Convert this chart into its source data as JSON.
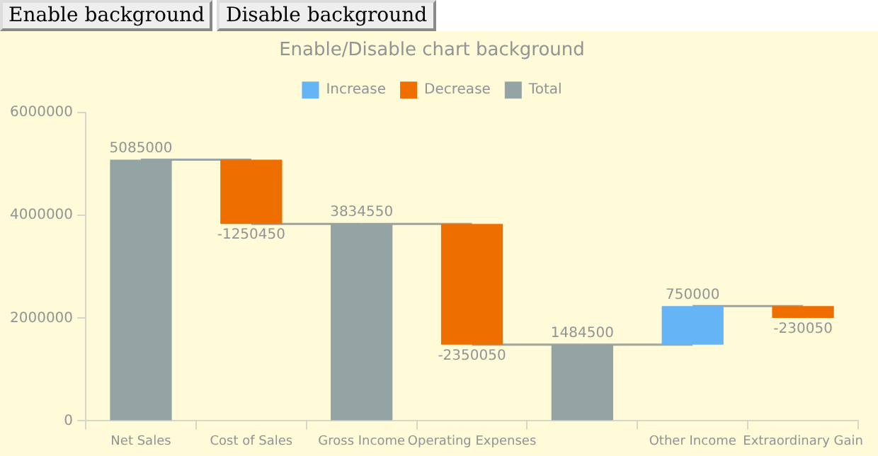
{
  "chart_data": {
    "type": "bar",
    "title": "Enable/Disable chart background",
    "categories": [
      "Net Sales",
      "Cost of Sales",
      "Gross Income",
      "Operating Expenses",
      null,
      "Other Income",
      "Extraordinary Gain"
    ],
    "annotations": [
      "Enable background",
      "Disable background"
    ],
    "series": [
      {
        "name": "Increase",
        "color": "#65b4f6",
        "base": [
          null,
          null,
          null,
          null,
          null,
          1484500,
          null
        ],
        "values": [
          null,
          null,
          null,
          null,
          null,
          750000,
          null
        ]
      },
      {
        "name": "Decrease",
        "color": "#ee6e00",
        "base": [
          null,
          5085000,
          null,
          3834550,
          null,
          null,
          2234500
        ],
        "values": [
          null,
          -1250450,
          null,
          -2350050,
          null,
          null,
          -230050
        ]
      },
      {
        "name": "Total",
        "color": "#94a3a3",
        "base": [
          0,
          null,
          0,
          null,
          0,
          null,
          null
        ],
        "values": [
          5085000,
          null,
          3834550,
          null,
          1484500,
          null,
          null
        ]
      }
    ],
    "ylim": [
      0,
      6000000
    ],
    "yticks": [
      0,
      2000000,
      4000000,
      6000000
    ],
    "grid": false,
    "legend": "top",
    "data_labels": true
  }
}
